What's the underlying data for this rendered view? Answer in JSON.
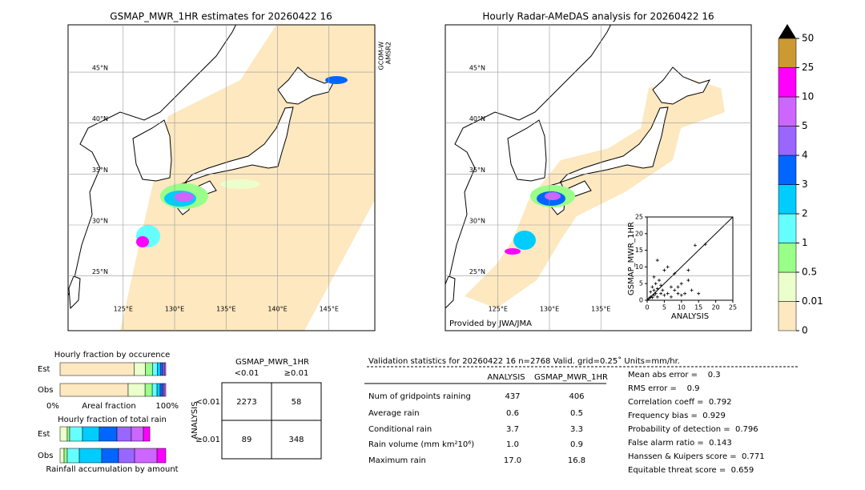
{
  "maps": [
    {
      "title": "GSMAP_MWR_1HR estimates for 20260422 16",
      "lat_labels": [
        {
          "value": 45,
          "label": "45°N"
        },
        {
          "value": 40,
          "label": "40°N"
        },
        {
          "value": 35,
          "label": "35°N"
        },
        {
          "value": 30,
          "label": "30°N"
        },
        {
          "value": 25,
          "label": "25°N"
        }
      ],
      "lon_labels": [
        {
          "value": 125,
          "label": "125°E"
        },
        {
          "value": 130,
          "label": "130°E"
        },
        {
          "value": 135,
          "label": "135°E"
        },
        {
          "value": 140,
          "label": "140°E"
        },
        {
          "value": 145,
          "label": "145°E"
        }
      ],
      "satellite": [
        "GCOM-W",
        "AMSR2"
      ]
    },
    {
      "title": "Hourly Radar-AMeDAS analysis for 20260422 16",
      "lat_labels": [
        {
          "value": 45,
          "label": "45°N"
        },
        {
          "value": 40,
          "label": "40°N"
        },
        {
          "value": 35,
          "label": "35°N"
        },
        {
          "value": 30,
          "label": "30°N"
        },
        {
          "value": 25,
          "label": "25°N"
        }
      ],
      "lon_labels": [
        {
          "value": 125,
          "label": "125°E"
        },
        {
          "value": 130,
          "label": "130°E"
        },
        {
          "value": 135,
          "label": "135°E"
        }
      ],
      "credit": "Provided by JWA/JMA"
    }
  ],
  "colorbar": {
    "levels": [
      0,
      0.01,
      0.5,
      1,
      2,
      3,
      4,
      5,
      10,
      25,
      50
    ],
    "colors": [
      "#fde8c0",
      "#eaffcc",
      "#99ff88",
      "#66ffff",
      "#00ccff",
      "#0066ff",
      "#9966ff",
      "#cc66ff",
      "#ff00ff",
      "#cc9933"
    ],
    "over_color": "#000000"
  },
  "scatter": {
    "type": "scatter",
    "xlabel": "ANALYSIS",
    "ylabel": "GSMAP_MWR_1HR",
    "xlim": [
      0,
      25
    ],
    "ylim": [
      0,
      25
    ],
    "xticks": [
      0,
      5,
      10,
      15,
      20,
      25
    ],
    "yticks": [
      0,
      5,
      10,
      15,
      20,
      25
    ],
    "x": [
      0.5,
      1,
      1.5,
      2,
      2.5,
      3,
      1,
      2,
      3,
      4,
      5,
      1.5,
      2.5,
      3.5,
      4.5,
      6,
      7,
      8,
      9,
      10,
      11,
      12,
      13,
      15,
      5,
      6,
      3,
      8,
      9,
      12,
      14,
      17,
      2,
      4,
      7,
      10
    ],
    "y": [
      0.5,
      1,
      0.8,
      1.5,
      2,
      1,
      2.5,
      3,
      3.5,
      2,
      1.5,
      4,
      5,
      6,
      3,
      2,
      4,
      3,
      2,
      5,
      2,
      9,
      3,
      2,
      9,
      10,
      12,
      8,
      4,
      6,
      16.5,
      16.8,
      7,
      4.5,
      1,
      1.5
    ]
  },
  "occurrence": {
    "title": "Hourly fraction by occurence",
    "rows": [
      "Est",
      "Obs"
    ],
    "values": [
      [
        70,
        10.6,
        6.8,
        4.5,
        3,
        2.3,
        1.5,
        1.3,
        0
      ],
      [
        64.4,
        16,
        6.8,
        4.5,
        3,
        2.3,
        1.5,
        1.5,
        0
      ]
    ],
    "min_label": "0%",
    "xlabel": "Areal fraction",
    "max_label": "100%"
  },
  "total_rain": {
    "title": "Hourly fraction of total rain",
    "rows": [
      "Est",
      "Obs"
    ],
    "values": [
      [
        0,
        6.8,
        2.3,
        12.1,
        15.9,
        16.7,
        13.6,
        11.4,
        6.1
      ],
      [
        0,
        3.8,
        3,
        11.4,
        21.2,
        15.9,
        15.2,
        21.2,
        8.3
      ]
    ],
    "xlabel": "Rainfall accumulation by amount"
  },
  "contingency": {
    "title": "GSMAP_MWR_1HR",
    "col_labels": [
      "<0.01",
      "≥0.01"
    ],
    "row_title": "ANALYSIS",
    "row_labels": [
      "<0.01",
      "≥0.01"
    ],
    "cells": [
      [
        "2273",
        "58"
      ],
      [
        "89",
        "348"
      ]
    ]
  },
  "stats": {
    "title": "Validation statistics for 20260422 16  n=2768 Valid. grid=0.25˚ Units=mm/hr.",
    "columns": [
      "ANALYSIS",
      "GSMAP_MWR_1HR"
    ],
    "rows": [
      {
        "label": "Num of gridpoints raining",
        "values": [
          "437",
          "406"
        ]
      },
      {
        "label": "Average rain",
        "values": [
          "0.6",
          "0.5"
        ]
      },
      {
        "label": "Conditional rain",
        "values": [
          "3.7",
          "3.3"
        ]
      },
      {
        "label": "Rain volume (mm km²10⁶)",
        "values": [
          "1.0",
          "0.9"
        ]
      },
      {
        "label": "Maximum rain",
        "values": [
          "17.0",
          "16.8"
        ]
      }
    ],
    "scores": [
      "Mean abs error =    0.3",
      "RMS error =    0.9",
      "Correlation coeff =  0.792",
      "Frequency bias =  0.929",
      "Probability of detection =  0.796",
      "False alarm ratio =  0.143",
      "Hanssen & Kuipers score =  0.771",
      "Equitable threat score =  0.659"
    ]
  }
}
